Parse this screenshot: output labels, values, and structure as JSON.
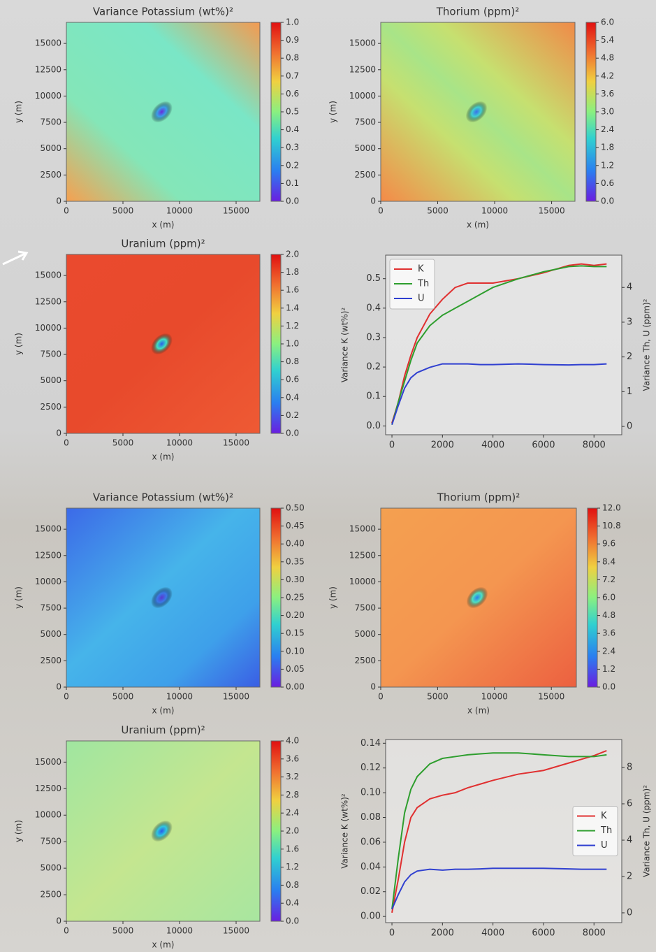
{
  "chart_data": [
    {
      "type": "heatmap",
      "title": "Variance Potassium (wt%)²",
      "xlabel": "x (m)",
      "ylabel": "y (m)",
      "xlim": [
        0,
        17100
      ],
      "ylim": [
        0,
        17000
      ],
      "xticks": [
        0,
        5000,
        10000,
        15000
      ],
      "yticks": [
        0,
        2500,
        5000,
        7500,
        10000,
        12500,
        15000
      ],
      "clim": [
        0,
        1
      ],
      "cticks": [
        {
          "value": 0,
          "label": "0.0"
        },
        0.1,
        0.2,
        0.3,
        0.4,
        0.5,
        0.6,
        0.7,
        0.8,
        0.9,
        {
          "value": 1,
          "label": "1.0"
        }
      ]
    },
    {
      "type": "heatmap",
      "title": "Thorium (ppm)²",
      "xlabel": "x (m)",
      "ylabel": "y (m)",
      "xlim": [
        0,
        17050
      ],
      "ylim": [
        0,
        17000
      ],
      "xticks": [
        0,
        5000,
        10000,
        15000
      ],
      "yticks": [
        0,
        2500,
        5000,
        7500,
        10000,
        12500,
        15000
      ],
      "clim": [
        0,
        6
      ],
      "cticks": [
        {
          "value": 0,
          "label": "0.0"
        },
        0.6,
        1.2,
        1.8,
        2.4,
        {
          "value": 3,
          "label": "3.0"
        },
        3.6,
        4.2,
        4.8,
        5.4,
        {
          "value": 6,
          "label": "6.0"
        }
      ]
    },
    {
      "type": "heatmap",
      "title": "Uranium (ppm)²",
      "xlabel": "x (m)",
      "ylabel": "y (m)",
      "xlim": [
        0,
        17100
      ],
      "ylim": [
        0,
        17000
      ],
      "xticks": [
        0,
        5000,
        10000,
        15000
      ],
      "yticks": [
        0,
        2500,
        5000,
        7500,
        10000,
        12500,
        15000
      ],
      "clim": [
        0,
        2
      ],
      "cticks": [
        {
          "value": 0,
          "label": "0.0"
        },
        0.2,
        0.4,
        0.6,
        0.8,
        {
          "value": 1,
          "label": "1.0"
        },
        1.2,
        1.4,
        1.6,
        1.8,
        {
          "value": 2,
          "label": "2.0"
        }
      ]
    },
    {
      "type": "line",
      "ylabel": "Variance K (wt%)²",
      "y2label": "Variance Th, U (ppm)²",
      "legend": "upper left",
      "xlim": [
        -250,
        9100
      ],
      "ylim": [
        -0.03,
        0.58
      ],
      "y2lim": [
        -0.24,
        4.93
      ],
      "xticks": [
        0,
        2000,
        4000,
        6000,
        8000
      ],
      "yticks": [
        {
          "value": 0,
          "label": "0.0"
        },
        0.1,
        0.2,
        0.3,
        0.4,
        0.5
      ],
      "y2ticks": [
        0,
        1,
        2,
        3,
        4
      ],
      "x": [
        0,
        250,
        500,
        750,
        1000,
        1500,
        2000,
        2500,
        3000,
        3500,
        4000,
        5000,
        6000,
        7000,
        7500,
        8000,
        8500
      ],
      "series": [
        {
          "name": "K",
          "color": "#e03030",
          "values": [
            0.01,
            0.08,
            0.17,
            0.24,
            0.3,
            0.38,
            0.43,
            0.47,
            0.485,
            0.485,
            0.485,
            0.5,
            0.52,
            0.545,
            0.55,
            0.545,
            0.55
          ]
        },
        {
          "name": "Th",
          "color": "#2e9e2e",
          "axis": "y2",
          "values": [
            0.05,
            0.7,
            1.3,
            1.9,
            2.4,
            2.9,
            3.2,
            3.4,
            3.6,
            3.8,
            4.0,
            4.25,
            4.45,
            4.6,
            4.62,
            4.6,
            4.6
          ]
        },
        {
          "name": "U",
          "color": "#3040d0",
          "axis": "y2",
          "values": [
            0.05,
            0.6,
            1.1,
            1.4,
            1.55,
            1.7,
            1.8,
            1.8,
            1.8,
            1.78,
            1.78,
            1.8,
            1.78,
            1.77,
            1.78,
            1.78,
            1.8
          ]
        }
      ]
    },
    {
      "type": "heatmap",
      "title": "Variance Potassium (wt%)²",
      "xlabel": "x (m)",
      "ylabel": "y (m)",
      "xlim": [
        0,
        17100
      ],
      "ylim": [
        0,
        17000
      ],
      "xticks": [
        0,
        5000,
        10000,
        15000
      ],
      "yticks": [
        0,
        2500,
        5000,
        7500,
        10000,
        12500,
        15000
      ],
      "clim": [
        0,
        0.5
      ],
      "cticks": [
        {
          "value": 0,
          "label": "0.00"
        },
        0.05,
        {
          "value": 0.1,
          "label": "0.10"
        },
        0.15,
        {
          "value": 0.2,
          "label": "0.20"
        },
        0.25,
        {
          "value": 0.3,
          "label": "0.30"
        },
        0.35,
        {
          "value": 0.4,
          "label": "0.40"
        },
        0.45,
        {
          "value": 0.5,
          "label": "0.50"
        }
      ]
    },
    {
      "type": "heatmap",
      "title": "Thorium (ppm)²",
      "xlabel": "x (m)",
      "ylabel": "y (m)",
      "xlim": [
        0,
        17200
      ],
      "ylim": [
        0,
        17000
      ],
      "xticks": [
        0,
        5000,
        10000,
        15000
      ],
      "yticks": [
        0,
        2500,
        5000,
        7500,
        10000,
        12500,
        15000
      ],
      "clim": [
        0,
        12
      ],
      "cticks": [
        {
          "value": 0,
          "label": "0.0"
        },
        1.2,
        2.4,
        3.6,
        4.8,
        {
          "value": 6,
          "label": "6.0"
        },
        7.2,
        8.4,
        9.6,
        10.8,
        {
          "value": 12,
          "label": "12.0"
        }
      ]
    },
    {
      "type": "heatmap",
      "title": "Uranium (ppm)²",
      "xlabel": "x (m)",
      "ylabel": "y (m)",
      "xlim": [
        0,
        17100
      ],
      "ylim": [
        0,
        17000
      ],
      "xticks": [
        0,
        5000,
        10000,
        15000
      ],
      "yticks": [
        0,
        2500,
        5000,
        7500,
        10000,
        12500,
        15000
      ],
      "clim": [
        0,
        4
      ],
      "cticks": [
        {
          "value": 0,
          "label": "0.0"
        },
        0.4,
        0.8,
        1.2,
        1.6,
        {
          "value": 2,
          "label": "2.0"
        },
        2.4,
        2.8,
        3.2,
        3.6,
        {
          "value": 4,
          "label": "4.0"
        }
      ]
    },
    {
      "type": "line",
      "ylabel": "Variance K (wt%)²",
      "y2label": "Variance Th, U (ppm)²",
      "legend": "center right",
      "xlim": [
        -250,
        9100
      ],
      "ylim": [
        -0.005,
        0.143
      ],
      "y2lim": [
        -0.54,
        9.54
      ],
      "xticks": [
        0,
        2000,
        4000,
        6000,
        8000
      ],
      "yticks": [
        {
          "value": 0,
          "label": "0.00"
        },
        0.02,
        0.04,
        0.06,
        0.08,
        {
          "value": 0.1,
          "label": "0.10"
        },
        0.12,
        0.14
      ],
      "y2ticks": [
        0,
        2,
        4,
        6,
        8
      ],
      "x": [
        0,
        250,
        500,
        750,
        1000,
        1500,
        2000,
        2500,
        3000,
        3500,
        4000,
        5000,
        6000,
        7000,
        7500,
        8000,
        8500
      ],
      "series": [
        {
          "name": "K",
          "color": "#e03030",
          "values": [
            0.003,
            0.03,
            0.06,
            0.08,
            0.088,
            0.095,
            0.098,
            0.1,
            0.104,
            0.107,
            0.11,
            0.115,
            0.118,
            0.124,
            0.127,
            0.13,
            0.134
          ]
        },
        {
          "name": "Th",
          "color": "#2e9e2e",
          "axis": "y2",
          "values": [
            0.2,
            3,
            5.5,
            6.8,
            7.5,
            8.2,
            8.5,
            8.6,
            8.7,
            8.75,
            8.8,
            8.8,
            8.7,
            8.6,
            8.6,
            8.6,
            8.7
          ]
        },
        {
          "name": "U",
          "color": "#3040d0",
          "axis": "y2",
          "values": [
            0.2,
            1,
            1.7,
            2.1,
            2.3,
            2.4,
            2.35,
            2.4,
            2.4,
            2.42,
            2.45,
            2.45,
            2.45,
            2.42,
            2.4,
            2.4,
            2.4
          ]
        }
      ]
    }
  ]
}
